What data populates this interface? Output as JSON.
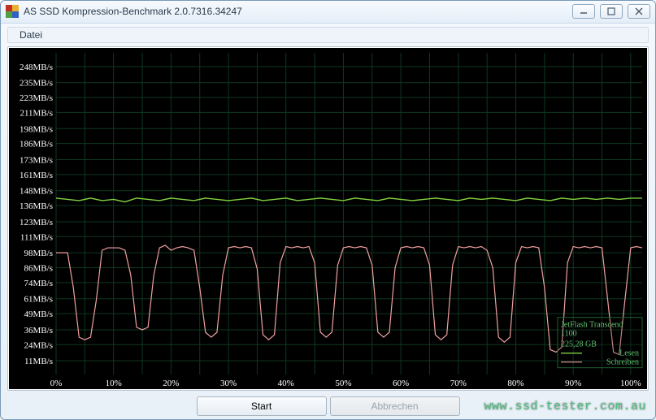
{
  "window": {
    "title": "AS SSD Kompression-Benchmark 2.0.7316.34247",
    "icon_colors": [
      "#c03020",
      "#e8b030",
      "#50a040",
      "#3060c0"
    ]
  },
  "menu": {
    "file": "Datei"
  },
  "buttons": {
    "start": "Start",
    "cancel": "Abbrechen"
  },
  "watermark": "www.ssd-tester.com.au",
  "legend": {
    "title": "JetFlash Transcend 1100",
    "capacity": "225,28 GB",
    "read": "Lesen",
    "write": "Schreiben",
    "box_border": "#206030",
    "read_color": "#80d040",
    "write_color": "#f0a0a0",
    "text_color": "#60c070"
  },
  "chart": {
    "bg": "#000000",
    "grid_color": "#0e3820",
    "axis_label_color": "#ffffff",
    "label_fontsize": 11,
    "y_ticks": [
      11,
      24,
      36,
      49,
      61,
      74,
      86,
      98,
      111,
      123,
      136,
      148,
      161,
      173,
      186,
      198,
      211,
      223,
      235,
      248
    ],
    "y_unit": "MB/s",
    "ylim": [
      0,
      259
    ],
    "xlim": [
      0,
      102
    ],
    "x_ticks": [
      0,
      10,
      20,
      30,
      40,
      50,
      60,
      70,
      80,
      90,
      100
    ],
    "x_unit": "%",
    "x_vgrid": [
      0,
      5,
      10,
      15,
      20,
      25,
      30,
      35,
      40,
      45,
      50,
      55,
      60,
      65,
      70,
      75,
      80,
      85,
      90,
      95,
      100
    ],
    "series": {
      "read": {
        "color": "#80d040",
        "width": 1.4,
        "points": [
          [
            0,
            142
          ],
          [
            2,
            141
          ],
          [
            4,
            140
          ],
          [
            6,
            142
          ],
          [
            8,
            140
          ],
          [
            10,
            141
          ],
          [
            12,
            139
          ],
          [
            14,
            142
          ],
          [
            16,
            141
          ],
          [
            18,
            140
          ],
          [
            20,
            142
          ],
          [
            22,
            141
          ],
          [
            24,
            140
          ],
          [
            26,
            142
          ],
          [
            28,
            141
          ],
          [
            30,
            140
          ],
          [
            32,
            141
          ],
          [
            34,
            142
          ],
          [
            36,
            140
          ],
          [
            38,
            141
          ],
          [
            40,
            142
          ],
          [
            42,
            140
          ],
          [
            44,
            141
          ],
          [
            46,
            142
          ],
          [
            48,
            141
          ],
          [
            50,
            140
          ],
          [
            52,
            142
          ],
          [
            54,
            141
          ],
          [
            56,
            140
          ],
          [
            58,
            142
          ],
          [
            60,
            141
          ],
          [
            62,
            140
          ],
          [
            64,
            141
          ],
          [
            66,
            142
          ],
          [
            68,
            141
          ],
          [
            70,
            140
          ],
          [
            72,
            142
          ],
          [
            74,
            141
          ],
          [
            76,
            142
          ],
          [
            78,
            141
          ],
          [
            80,
            140
          ],
          [
            82,
            142
          ],
          [
            84,
            141
          ],
          [
            86,
            140
          ],
          [
            88,
            142
          ],
          [
            90,
            141
          ],
          [
            92,
            142
          ],
          [
            94,
            141
          ],
          [
            96,
            142
          ],
          [
            98,
            141
          ],
          [
            100,
            142
          ],
          [
            102,
            142
          ]
        ]
      },
      "write": {
        "color": "#f0a0a0",
        "width": 1.2,
        "points": [
          [
            0,
            98
          ],
          [
            2,
            98
          ],
          [
            3,
            70
          ],
          [
            4,
            30
          ],
          [
            5,
            28
          ],
          [
            6,
            30
          ],
          [
            7,
            60
          ],
          [
            8,
            100
          ],
          [
            9,
            102
          ],
          [
            10,
            102
          ],
          [
            11,
            102
          ],
          [
            12,
            100
          ],
          [
            13,
            80
          ],
          [
            14,
            38
          ],
          [
            15,
            36
          ],
          [
            16,
            38
          ],
          [
            17,
            80
          ],
          [
            18,
            102
          ],
          [
            19,
            104
          ],
          [
            20,
            100
          ],
          [
            21,
            102
          ],
          [
            22,
            103
          ],
          [
            23,
            102
          ],
          [
            24,
            100
          ],
          [
            25,
            70
          ],
          [
            26,
            34
          ],
          [
            27,
            30
          ],
          [
            28,
            34
          ],
          [
            29,
            80
          ],
          [
            30,
            102
          ],
          [
            31,
            103
          ],
          [
            32,
            102
          ],
          [
            33,
            103
          ],
          [
            34,
            102
          ],
          [
            35,
            85
          ],
          [
            36,
            32
          ],
          [
            37,
            28
          ],
          [
            38,
            32
          ],
          [
            39,
            90
          ],
          [
            40,
            103
          ],
          [
            41,
            102
          ],
          [
            42,
            103
          ],
          [
            43,
            102
          ],
          [
            44,
            103
          ],
          [
            45,
            90
          ],
          [
            46,
            34
          ],
          [
            47,
            30
          ],
          [
            48,
            34
          ],
          [
            49,
            88
          ],
          [
            50,
            102
          ],
          [
            51,
            103
          ],
          [
            52,
            102
          ],
          [
            53,
            103
          ],
          [
            54,
            102
          ],
          [
            55,
            88
          ],
          [
            56,
            34
          ],
          [
            57,
            30
          ],
          [
            58,
            34
          ],
          [
            59,
            86
          ],
          [
            60,
            102
          ],
          [
            61,
            103
          ],
          [
            62,
            102
          ],
          [
            63,
            103
          ],
          [
            64,
            102
          ],
          [
            65,
            88
          ],
          [
            66,
            32
          ],
          [
            67,
            28
          ],
          [
            68,
            32
          ],
          [
            69,
            88
          ],
          [
            70,
            103
          ],
          [
            71,
            102
          ],
          [
            72,
            103
          ],
          [
            73,
            102
          ],
          [
            74,
            103
          ],
          [
            75,
            100
          ],
          [
            76,
            86
          ],
          [
            77,
            30
          ],
          [
            78,
            26
          ],
          [
            79,
            30
          ],
          [
            80,
            90
          ],
          [
            81,
            103
          ],
          [
            82,
            102
          ],
          [
            83,
            103
          ],
          [
            84,
            102
          ],
          [
            85,
            70
          ],
          [
            86,
            20
          ],
          [
            87,
            18
          ],
          [
            88,
            22
          ],
          [
            89,
            90
          ],
          [
            90,
            103
          ],
          [
            91,
            102
          ],
          [
            92,
            103
          ],
          [
            93,
            102
          ],
          [
            94,
            103
          ],
          [
            95,
            102
          ],
          [
            96,
            60
          ],
          [
            97,
            18
          ],
          [
            98,
            16
          ],
          [
            99,
            60
          ],
          [
            100,
            102
          ],
          [
            101,
            103
          ],
          [
            102,
            102
          ]
        ]
      }
    }
  }
}
